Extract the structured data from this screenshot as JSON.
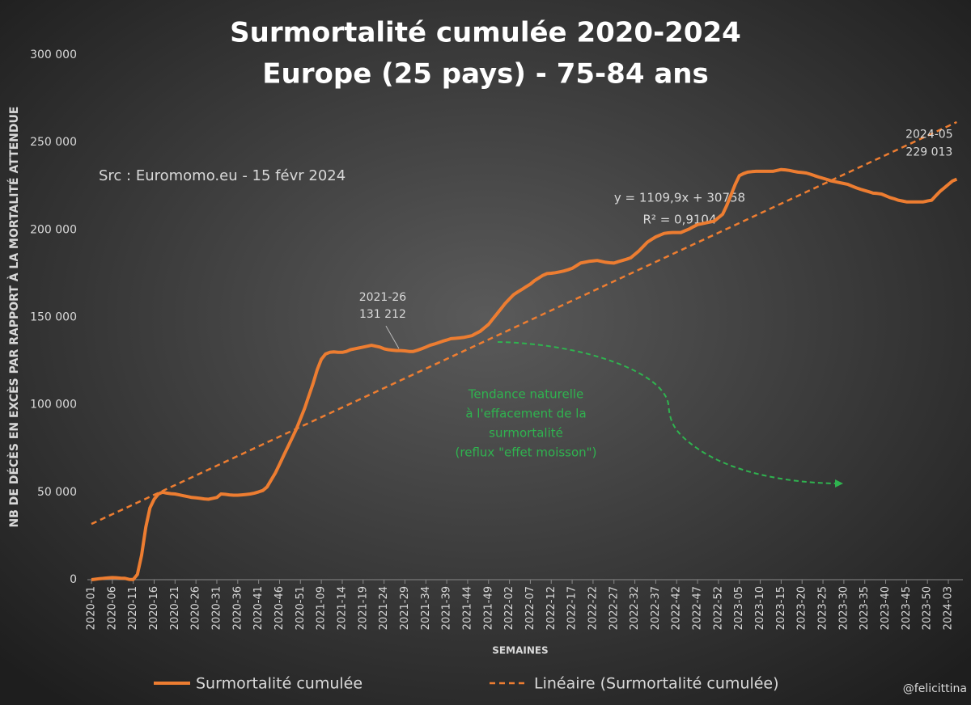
{
  "chart_data": {
    "type": "line",
    "title": "Surmortalité cumulée 2020-2024",
    "subtitle": "Europe (25 pays) - 75-84 ans",
    "source": "Src : Euromomo.eu  - 15 févr 2024",
    "x_label": "SEMAINES",
    "y_label": "NB DE DÉCÈS EN EXCÈS PAR RAPPORT À LA MORTALITÉ ATTENDUE",
    "credit": "@felicittina",
    "trend_equation": [
      "y = 1109,9x + 30758",
      "R² = 0,9104"
    ],
    "note": [
      "Tendance naturelle",
      "à l'effacement de la",
      "surmortalité",
      "(reflux \"effet moisson\")"
    ],
    "note_color": "#2fb34f",
    "categories": [
      "2020-01",
      null,
      null,
      null,
      null,
      "2020-06",
      null,
      null,
      null,
      null,
      "2020-11",
      null,
      null,
      null,
      null,
      "2020-16",
      null,
      null,
      null,
      null,
      "2020-21",
      null,
      null,
      null,
      null,
      "2020-26",
      null,
      null,
      null,
      null,
      "2020-31",
      null,
      null,
      null,
      null,
      "2020-36",
      null,
      null,
      null,
      null,
      "2020-41",
      null,
      null,
      null,
      null,
      "2020-46",
      null,
      null,
      null,
      null,
      "2020-51",
      null,
      null,
      null,
      null,
      "2021-09",
      null,
      null,
      null,
      null,
      "2021-14",
      null,
      null,
      null,
      null,
      "2021-19",
      null,
      null,
      null,
      null,
      "2021-24",
      null,
      null,
      null,
      null,
      "2021-29",
      null,
      null,
      null,
      null,
      "2021-34",
      null,
      null,
      null,
      null,
      "2021-39",
      null,
      null,
      null,
      null,
      "2021-44",
      null,
      null,
      null,
      null,
      "2021-49",
      null,
      null,
      null,
      null,
      "2022-02",
      null,
      null,
      null,
      null,
      "2022-07",
      null,
      null,
      null,
      null,
      "2022-12",
      null,
      null,
      null,
      null,
      "2022-17",
      null,
      null,
      null,
      null,
      "2022-22",
      null,
      null,
      null,
      null,
      "2022-27",
      null,
      null,
      null,
      null,
      "2022-32",
      null,
      null,
      null,
      null,
      "2022-37",
      null,
      null,
      null,
      null,
      "2022-42",
      null,
      null,
      null,
      null,
      "2022-47",
      null,
      null,
      null,
      null,
      "2022-52",
      null,
      null,
      null,
      null,
      "2023-05",
      null,
      null,
      null,
      null,
      "2023-10",
      null,
      null,
      null,
      null,
      "2023-15",
      null,
      null,
      null,
      null,
      "2023-20",
      null,
      null,
      null,
      null,
      "2023-25",
      null,
      null,
      null,
      null,
      "2023-30",
      null,
      null,
      null,
      null,
      "2023-35",
      null,
      null,
      null,
      null,
      "2023-40",
      null,
      null,
      null,
      null,
      "2023-45",
      null,
      null,
      null,
      null,
      "2023-50",
      null,
      null,
      null,
      null,
      "2024-03",
      null,
      null
    ],
    "series": [
      {
        "name": "Surmortalité cumulée",
        "color": "#ed7d31",
        "values": [
          0,
          300,
          600,
          800,
          1000,
          1200,
          1100,
          900,
          800,
          200,
          100,
          3000,
          14000,
          30000,
          41000,
          46000,
          49000,
          50000,
          49500,
          49200,
          49000,
          48500,
          48000,
          47500,
          47000,
          46800,
          46500,
          46200,
          46000,
          46500,
          47000,
          49000,
          48800,
          48500,
          48300,
          48300,
          48500,
          48700,
          49000,
          49500,
          50200,
          51000,
          53000,
          57000,
          61000,
          66000,
          71000,
          76000,
          81000,
          86000,
          92000,
          98000,
          105000,
          112000,
          120000,
          126000,
          129000,
          130000,
          130200,
          130000,
          130000,
          130500,
          131500,
          132000,
          132500,
          133000,
          133500,
          134000,
          133500,
          133000,
          132000,
          131500,
          131212,
          131000,
          131000,
          130800,
          130500,
          130500,
          131200,
          132000,
          133000,
          134000,
          134700,
          135500,
          136300,
          137000,
          137800,
          138000,
          138200,
          138500,
          139000,
          139500,
          140800,
          142000,
          144000,
          146000,
          149000,
          152000,
          155000,
          158000,
          160500,
          163000,
          164500,
          166000,
          167500,
          169000,
          171000,
          172500,
          174000,
          175000,
          175200,
          175500,
          176000,
          176500,
          177200,
          178000,
          179500,
          181000,
          181500,
          182000,
          182200,
          182500,
          182000,
          181500,
          181200,
          181000,
          181800,
          182500,
          183200,
          184000,
          186000,
          188000,
          190500,
          193000,
          194500,
          196000,
          197000,
          198000,
          198300,
          198500,
          198500,
          198500,
          199500,
          200500,
          201800,
          203000,
          203500,
          204000,
          204500,
          205000,
          207000,
          209000,
          214000,
          220000,
          226000,
          231000,
          232200,
          233000,
          233300,
          233500,
          233500,
          233500,
          233500,
          233500,
          234000,
          234500,
          234300,
          234000,
          233500,
          233000,
          232800,
          232500,
          231800,
          231000,
          230200,
          229500,
          228800,
          228000,
          227500,
          227000,
          226500,
          226000,
          225000,
          224000,
          223200,
          222500,
          221800,
          221000,
          220800,
          220500,
          219500,
          218500,
          217800,
          217000,
          216500,
          216000,
          216000,
          216000,
          216000,
          216000,
          216500,
          217000,
          219500,
          222000,
          224000,
          226000,
          228000,
          229013
        ]
      },
      {
        "name": "Linéaire (Surmortalité cumulée)",
        "color": "#ed7d31",
        "dashed": true,
        "slope": 1109.9,
        "intercept": 30758
      }
    ],
    "annotations": [
      {
        "label": "2021-26",
        "value_label": "131 212",
        "point": 72
      },
      {
        "label": "2024-05",
        "value_label": "229 013",
        "point": 207
      }
    ],
    "ylim": [
      0,
      300000
    ],
    "yticks": [
      0,
      {
        "value": 50000,
        "label": "50 000"
      },
      {
        "value": 100000,
        "label": "100 000"
      },
      {
        "value": 150000,
        "label": "150 000"
      },
      {
        "value": 200000,
        "label": "200 000"
      },
      {
        "value": 250000,
        "label": "250 000"
      },
      {
        "value": 300000,
        "label": "300 000"
      }
    ],
    "grid": false
  }
}
